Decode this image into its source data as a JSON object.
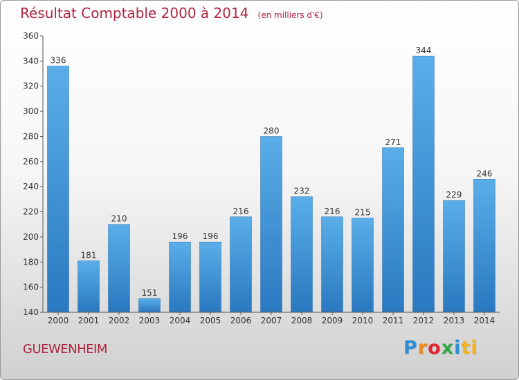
{
  "chart_data": {
    "type": "bar",
    "title": "Résultat Comptable 2000 à 2014",
    "subtitle": "(en milliers d'€)",
    "categories": [
      "2000",
      "2001",
      "2002",
      "2003",
      "2004",
      "2005",
      "2006",
      "2007",
      "2008",
      "2009",
      "2010",
      "2011",
      "2012",
      "2013",
      "2014"
    ],
    "values": [
      336,
      181,
      210,
      151,
      196,
      196,
      216,
      280,
      232,
      216,
      215,
      271,
      344,
      229,
      246
    ],
    "ylim": [
      140,
      360
    ],
    "yticks": [
      140,
      160,
      180,
      200,
      220,
      240,
      260,
      280,
      300,
      320,
      340,
      360
    ],
    "grid": false,
    "legend": "none",
    "bar_color": "#3d9ae0",
    "bar_color_dark": "#2a78c0"
  },
  "footer": {
    "commune": "GUEWENHEIM",
    "logo_letters": [
      "P",
      "r",
      "o",
      "x",
      "i",
      "ti"
    ]
  },
  "colors": {
    "title": "#b0243f",
    "axis": "#333333"
  }
}
